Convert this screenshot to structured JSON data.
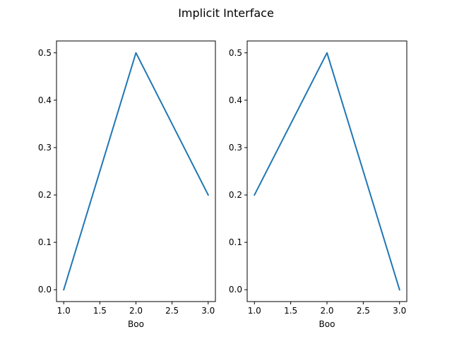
{
  "figure": {
    "title": "Implicit Interface"
  },
  "chart_data": [
    {
      "type": "line",
      "title": "",
      "xlabel": "Boo",
      "ylabel": "",
      "xlim": [
        0.9,
        3.1
      ],
      "ylim": [
        -0.025,
        0.525
      ],
      "xticks": [
        1.0,
        1.5,
        2.0,
        2.5,
        3.0
      ],
      "xtick_labels": [
        "1.0",
        "1.5",
        "2.0",
        "2.5",
        "3.0"
      ],
      "yticks": [
        0.0,
        0.1,
        0.2,
        0.3,
        0.4,
        0.5
      ],
      "ytick_labels": [
        "0.0",
        "0.1",
        "0.2",
        "0.3",
        "0.4",
        "0.5"
      ],
      "grid": false,
      "series": [
        {
          "x": [
            1,
            2,
            3
          ],
          "y": [
            0.0,
            0.5,
            0.2
          ],
          "color": "#1f77b4"
        }
      ]
    },
    {
      "type": "line",
      "title": "",
      "xlabel": "Boo",
      "ylabel": "",
      "xlim": [
        0.9,
        3.1
      ],
      "ylim": [
        -0.025,
        0.525
      ],
      "xticks": [
        1.0,
        1.5,
        2.0,
        2.5,
        3.0
      ],
      "xtick_labels": [
        "1.0",
        "1.5",
        "2.0",
        "2.5",
        "3.0"
      ],
      "yticks": [
        0.0,
        0.1,
        0.2,
        0.3,
        0.4,
        0.5
      ],
      "ytick_labels": [
        "0.0",
        "0.1",
        "0.2",
        "0.3",
        "0.4",
        "0.5"
      ],
      "grid": false,
      "series": [
        {
          "x": [
            1,
            2,
            3
          ],
          "y": [
            0.2,
            0.5,
            0.0
          ],
          "color": "#1f77b4"
        }
      ]
    }
  ]
}
